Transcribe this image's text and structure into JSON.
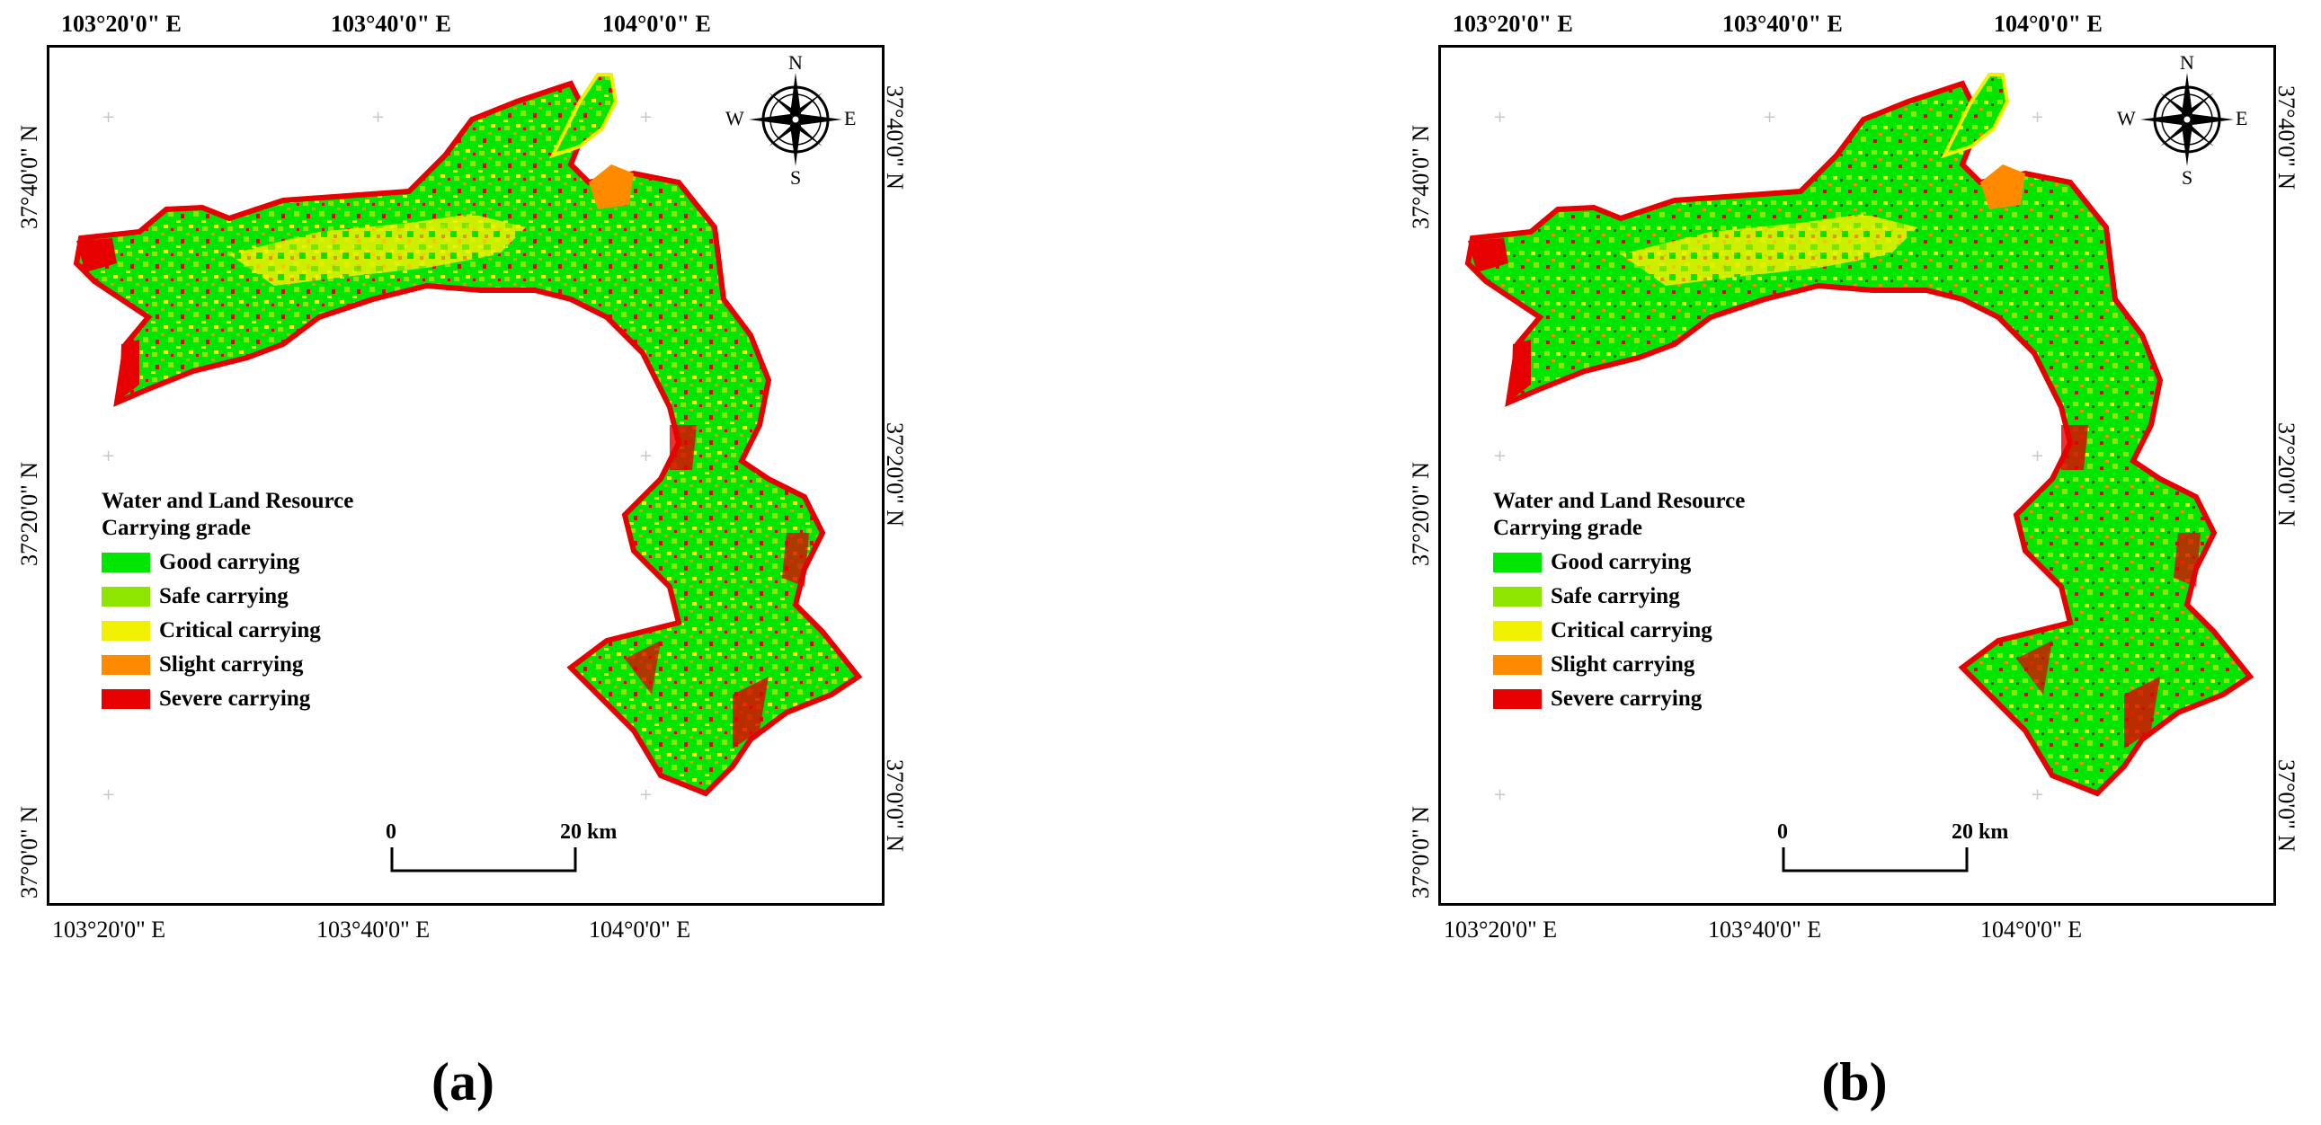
{
  "panels": [
    {
      "id": "a",
      "caption": "(a)",
      "top_lon_labels": [
        "103°20'0\" E",
        "103°40'0\" E",
        "104°0'0\" E"
      ],
      "bottom_lon_labels": [
        "103°20'0\" E",
        "103°40'0\" E",
        "104°0'0\" E"
      ],
      "left_lat_labels": [
        "37°40'0\" N",
        "37°20'0\" N",
        "37°0'0\" N"
      ],
      "right_lat_labels": [
        "37°40'0\" N",
        "37°20'0\" N",
        "37°0'0\" N"
      ],
      "compass": {
        "n": "N",
        "s": "S",
        "e": "E",
        "w": "W"
      },
      "legend": {
        "title_line1": "Water and Land Resource",
        "title_line2": "Carrying grade",
        "items": [
          {
            "label": "Good carrying",
            "color": "#00e600"
          },
          {
            "label": "Safe carrying",
            "color": "#8ee600"
          },
          {
            "label": "Critical carrying",
            "color": "#f0f000"
          },
          {
            "label": "Slight carrying",
            "color": "#ff8a00"
          },
          {
            "label": "Severe carrying",
            "color": "#e60000"
          }
        ]
      },
      "scale_bar": {
        "start": "0",
        "end": "20 km"
      }
    },
    {
      "id": "b",
      "caption": "(b)",
      "top_lon_labels": [
        "103°20'0\" E",
        "103°40'0\" E",
        "104°0'0\" E"
      ],
      "bottom_lon_labels": [
        "103°20'0\" E",
        "103°40'0\" E",
        "104°0'0\" E"
      ],
      "left_lat_labels": [
        "37°40'0\" N",
        "37°20'0\" N",
        "37°0'0\" N"
      ],
      "right_lat_labels": [
        "37°40'0\" N",
        "37°20'0\" N",
        "37°0'0\" N"
      ],
      "compass": {
        "n": "N",
        "s": "S",
        "e": "E",
        "w": "W"
      },
      "legend": {
        "title_line1": "Water and Land Resource",
        "title_line2": "Carrying grade",
        "items": [
          {
            "label": "Good carrying",
            "color": "#00e600"
          },
          {
            "label": "Safe carrying",
            "color": "#8ee600"
          },
          {
            "label": "Critical carrying",
            "color": "#f0f000"
          },
          {
            "label": "Slight carrying",
            "color": "#ff8a00"
          },
          {
            "label": "Severe carrying",
            "color": "#e60000"
          }
        ]
      },
      "scale_bar": {
        "start": "0",
        "end": "20 km"
      }
    }
  ]
}
